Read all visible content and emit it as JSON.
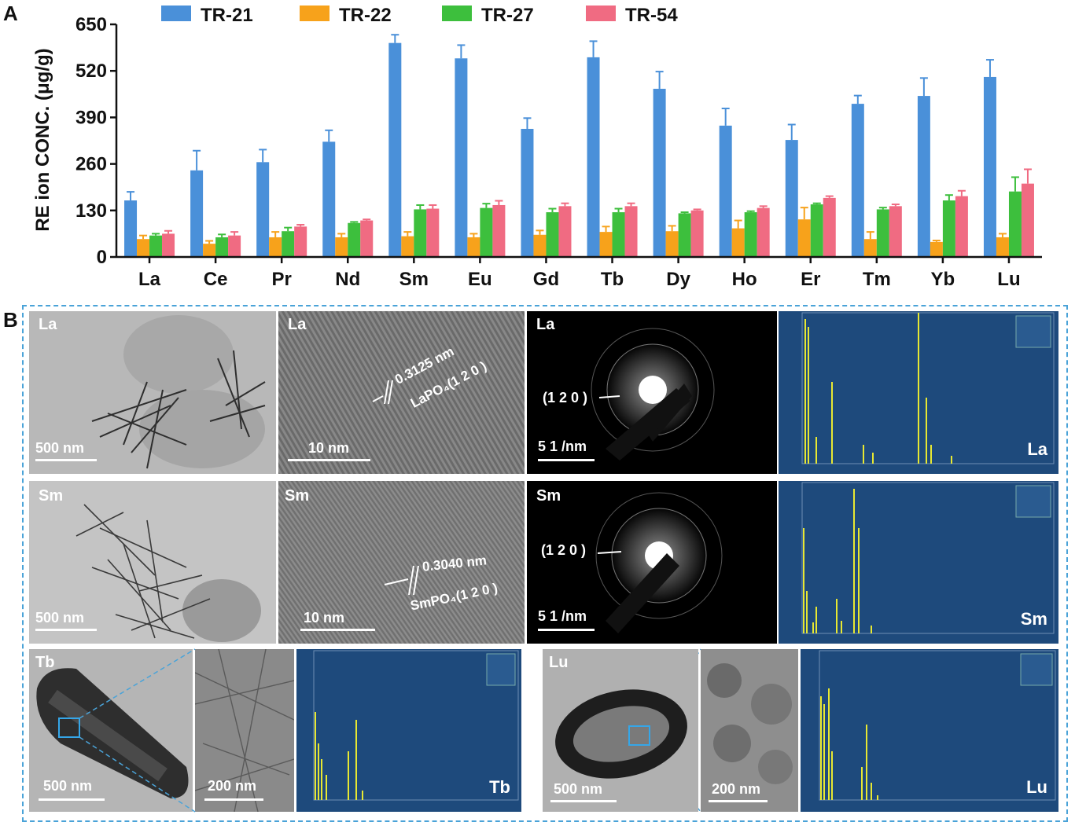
{
  "panel_labels": {
    "a": "A",
    "b": "B"
  },
  "chart_data": {
    "type": "bar",
    "ylabel": "RE ion CONC. (μg/g)",
    "ylim": [
      0,
      650
    ],
    "yticks": [
      0,
      130,
      260,
      390,
      520,
      650
    ],
    "grid": false,
    "legend_position": "top",
    "categories": [
      "La",
      "Ce",
      "Pr",
      "Nd",
      "Sm",
      "Eu",
      "Gd",
      "Tb",
      "Dy",
      "Ho",
      "Er",
      "Tm",
      "Yb",
      "Lu"
    ],
    "series": [
      {
        "name": "TR-21",
        "color": "#4a90d9",
        "values": [
          158,
          242,
          265,
          322,
          598,
          555,
          358,
          558,
          470,
          367,
          327,
          428,
          450,
          503
        ],
        "errors": [
          24,
          55,
          35,
          32,
          23,
          37,
          30,
          45,
          48,
          48,
          43,
          23,
          50,
          48
        ]
      },
      {
        "name": "TR-22",
        "color": "#f7a21b",
        "values": [
          50,
          37,
          55,
          55,
          58,
          55,
          62,
          70,
          72,
          80,
          105,
          50,
          42,
          55
        ],
        "errors": [
          10,
          8,
          15,
          10,
          12,
          10,
          12,
          15,
          15,
          22,
          33,
          20,
          4,
          10
        ]
      },
      {
        "name": "TR-27",
        "color": "#3dbf3d",
        "values": [
          60,
          55,
          72,
          95,
          133,
          137,
          125,
          125,
          122,
          125,
          147,
          133,
          158,
          183
        ],
        "errors": [
          5,
          8,
          10,
          3,
          12,
          12,
          10,
          10,
          3,
          3,
          3,
          5,
          15,
          40
        ]
      },
      {
        "name": "TR-54",
        "color": "#f06b82",
        "values": [
          65,
          60,
          85,
          102,
          135,
          145,
          142,
          142,
          130,
          137,
          165,
          142,
          170,
          205
        ],
        "errors": [
          8,
          10,
          5,
          3,
          10,
          12,
          8,
          8,
          3,
          5,
          5,
          5,
          15,
          40
        ]
      }
    ]
  },
  "panel_b": {
    "row1": {
      "tem_label": "La",
      "tem_scale": "500 nm",
      "hrtem_label": "La",
      "hrtem_scale": "10 nm",
      "hrtem_spacing": "0.3125 nm",
      "hrtem_plane": "LaPO₄(1 2 0 )",
      "saed_label": "La",
      "saed_plane": "(1 2 0 )",
      "saed_scale": "5 1 /nm",
      "eds_label": "La"
    },
    "row2": {
      "tem_label": "Sm",
      "tem_scale": "500 nm",
      "hrtem_label": "Sm",
      "hrtem_scale": "10 nm",
      "hrtem_spacing": "0.3040 nm",
      "hrtem_plane": "SmPO₄(1 2 0 )",
      "saed_label": "Sm",
      "saed_plane": "(1 2 0 )",
      "saed_scale": "5 1 /nm",
      "eds_label": "Sm"
    },
    "row3_left": {
      "tem_label": "Tb",
      "tem_scale": "500 nm",
      "zoom_scale": "200 nm",
      "eds_label": "Tb"
    },
    "row3_right": {
      "tem_label": "Lu",
      "tem_scale": "500 nm",
      "zoom_scale": "200 nm",
      "eds_label": "Lu"
    }
  }
}
